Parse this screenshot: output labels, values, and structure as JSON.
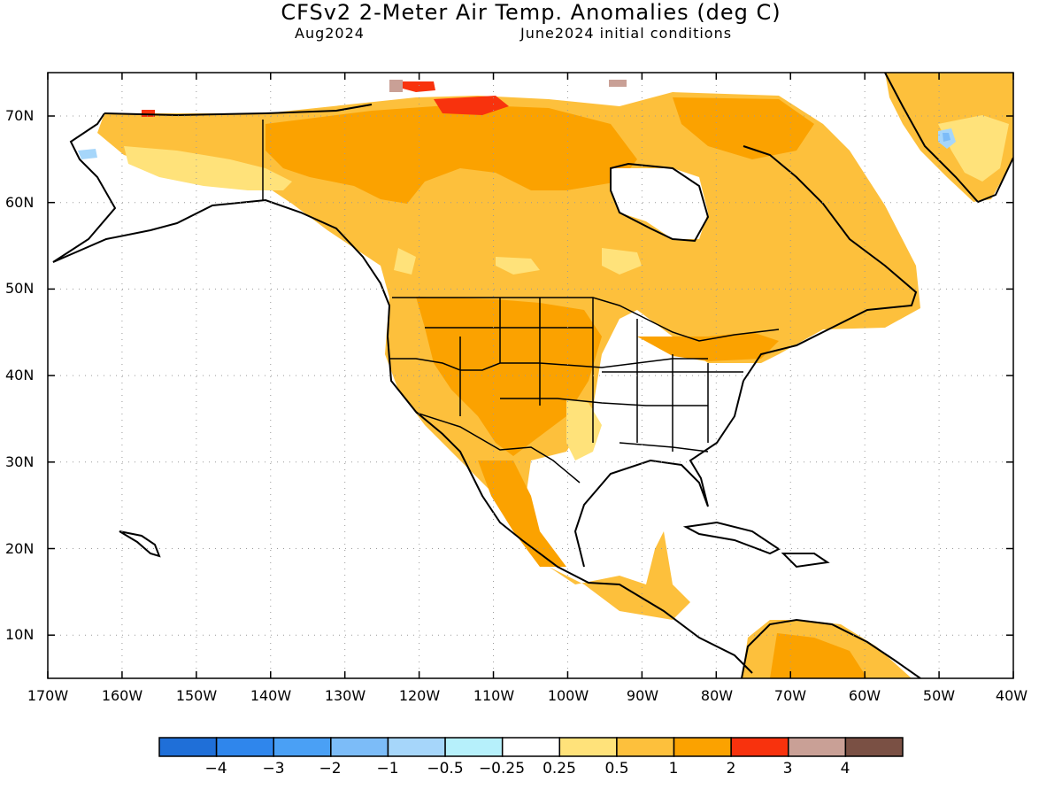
{
  "header": {
    "title": "CFSv2 2-Meter Air Temp. Anomalies (deg C)",
    "valid": "Aug2024",
    "init": "June2024 initial conditions"
  },
  "axes": {
    "lat_labels": [
      "70N",
      "60N",
      "50N",
      "40N",
      "30N",
      "20N",
      "10N"
    ],
    "lon_labels": [
      "170W",
      "160W",
      "150W",
      "140W",
      "130W",
      "120W",
      "110W",
      "100W",
      "90W",
      "80W",
      "70W",
      "60W",
      "50W",
      "40W"
    ]
  },
  "colorbar": {
    "colors": [
      "#1f6fd8",
      "#2f86ec",
      "#4aa0f5",
      "#7cbcf8",
      "#a6d6fa",
      "#b6f0fb",
      "#ffffff",
      "#ffe27a",
      "#fdc03c",
      "#fba200",
      "#f8320d",
      "#c9a096",
      "#7a5044"
    ],
    "labels": [
      "−4",
      "−3",
      "−2",
      "−1",
      "−0.5",
      "−0.25",
      "0.25",
      "0.5",
      "1",
      "2",
      "3",
      "4"
    ]
  },
  "legend_colors": {
    "0.25_0.5": "#ffe27a",
    "0.5_1": "#fdc03c",
    "1_2": "#fba200",
    "2_3": "#f8320d",
    "3_4": "#c9a096",
    "-1_-0.5": "#a6d6fa",
    "-2_-1": "#7cbcf8"
  }
}
